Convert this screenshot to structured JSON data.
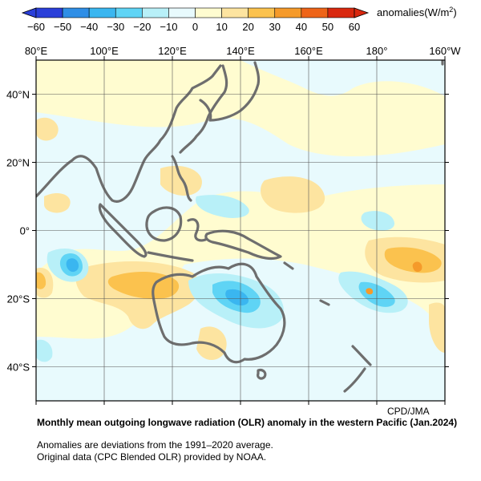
{
  "map": {
    "credit": "CPD/JMA",
    "lon_labels": [
      "80°E",
      "100°E",
      "120°E",
      "140°E",
      "160°E",
      "180°",
      "160°W"
    ],
    "lat_labels": [
      "40°N",
      "20°N",
      "0°",
      "20°S",
      "40°S"
    ],
    "lon_range": [
      80,
      200
    ],
    "lat_range": [
      -50,
      50
    ],
    "grid_step": 20,
    "grid_visible": true,
    "land_outline_color": "#6e6e6e"
  },
  "legend": {
    "unit_prefix": "anomalies(W/m",
    "unit_sup": "2",
    "unit_suffix": ")",
    "tick_labels": [
      "−60",
      "−50",
      "−40",
      "−30",
      "−20",
      "−10",
      "0",
      "10",
      "20",
      "30",
      "40",
      "50",
      "60"
    ],
    "colors": [
      "#2a3fd9",
      "#2f8ee6",
      "#3ab6f0",
      "#5fd4f5",
      "#b8f0f8",
      "#e8fafd",
      "#fffcd0",
      "#fde4a0",
      "#fbc24e",
      "#f59a2a",
      "#ee6418",
      "#d9280f"
    ]
  },
  "caption": {
    "title": "Monthly mean outgoing longwave radiation (OLR) anomaly in the western Pacific (Jan.2024)",
    "note1": "Anomalies are deviations from the 1991–2020 average.",
    "note2": "Original data (CPC Blended OLR) provided by NOAA."
  }
}
